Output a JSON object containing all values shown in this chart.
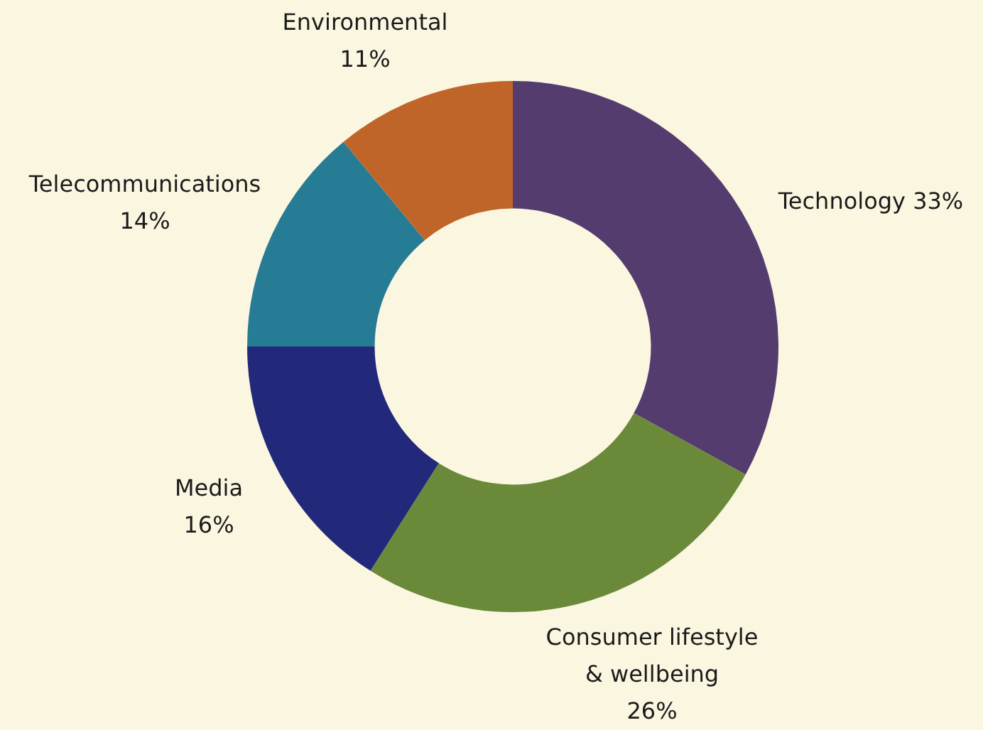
{
  "chart_data": {
    "type": "donut",
    "categories": [
      "Technology",
      "Consumer lifestyle & wellbeing",
      "Media",
      "Telecommunications",
      "Environmental"
    ],
    "values": [
      33,
      26,
      16,
      14,
      11
    ],
    "colors": [
      "#553c6e",
      "#6a8a3a",
      "#23297a",
      "#267c94",
      "#c0652a"
    ],
    "value_labels": [
      "33%",
      "26%",
      "16%",
      "14%",
      "11%"
    ],
    "legend": false
  }
}
